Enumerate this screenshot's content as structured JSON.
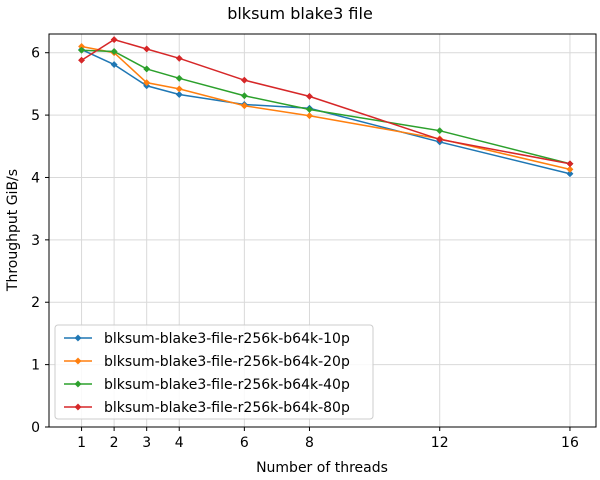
{
  "chart_data": {
    "type": "line",
    "title": "blksum blake3 file",
    "xlabel": "Number of threads",
    "ylabel": "Throughput GiB/s",
    "x": [
      1,
      2,
      3,
      4,
      6,
      8,
      12,
      16
    ],
    "xlim": [
      0,
      16.8
    ],
    "ylim": [
      0,
      6.3
    ],
    "xticks": [
      1,
      2,
      3,
      4,
      6,
      8,
      12,
      16
    ],
    "yticks": [
      0,
      1,
      2,
      3,
      4,
      5,
      6
    ],
    "grid": true,
    "legend_position": "lower-left",
    "series": [
      {
        "name": "blksum-blake3-file-r256k-b64k-10p",
        "color": "#1f77b4",
        "values": [
          6.05,
          5.81,
          5.47,
          5.33,
          5.17,
          5.11,
          4.57,
          4.06
        ]
      },
      {
        "name": "blksum-blake3-file-r256k-b64k-20p",
        "color": "#ff7f0e",
        "values": [
          6.1,
          6.0,
          5.52,
          5.42,
          5.15,
          4.99,
          4.62,
          4.13
        ]
      },
      {
        "name": "blksum-blake3-file-r256k-b64k-40p",
        "color": "#2ca02c",
        "values": [
          6.04,
          6.02,
          5.74,
          5.59,
          5.31,
          5.09,
          4.75,
          4.22
        ]
      },
      {
        "name": "blksum-blake3-file-r256k-b64k-80p",
        "color": "#d62728",
        "values": [
          5.88,
          6.21,
          6.06,
          5.91,
          5.56,
          5.3,
          4.61,
          4.22
        ]
      }
    ]
  }
}
